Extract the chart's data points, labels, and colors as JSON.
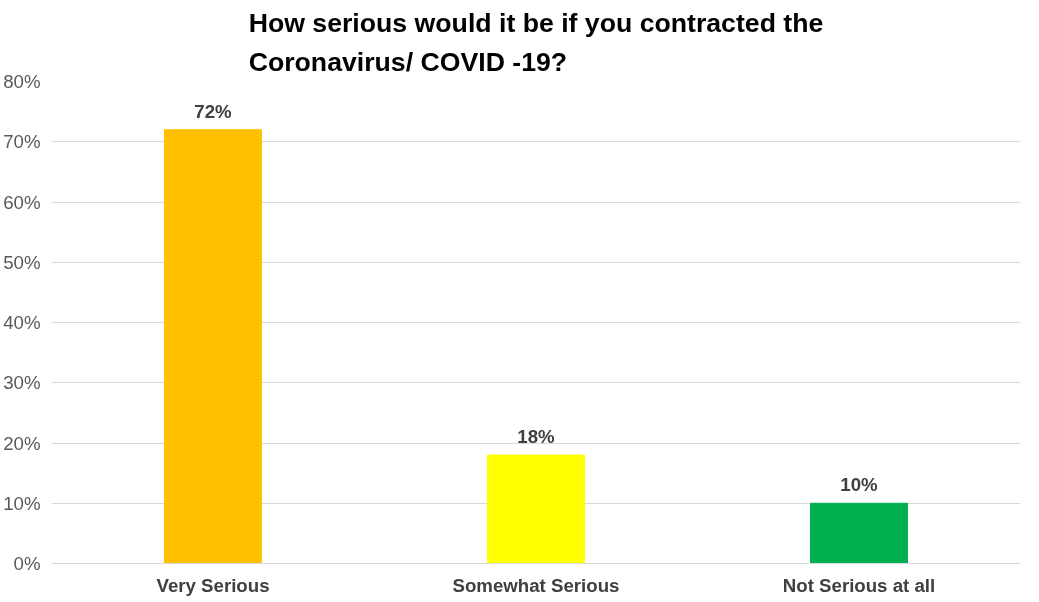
{
  "chart_data": {
    "type": "bar",
    "title": "How serious would it be if you contracted the Coronavirus/ COVID -19?",
    "categories": [
      "Very Serious",
      "Somewhat Serious",
      "Not Serious at all"
    ],
    "values": [
      72,
      18,
      10
    ],
    "colors": [
      "#ffc000",
      "#ffff00",
      "#00b050"
    ],
    "value_labels": [
      "72%",
      "18%",
      "10%"
    ],
    "ylim": [
      0,
      80
    ],
    "yticks": [
      {
        "value": 0,
        "label": "0%"
      },
      {
        "value": 10,
        "label": "10%"
      },
      {
        "value": 20,
        "label": "20%"
      },
      {
        "value": 30,
        "label": "30%"
      },
      {
        "value": 40,
        "label": "40%"
      },
      {
        "value": 50,
        "label": "50%"
      },
      {
        "value": 60,
        "label": "60%"
      },
      {
        "value": 70,
        "label": "70%"
      },
      {
        "value": 80,
        "label": "80%"
      }
    ],
    "grid": "y"
  }
}
